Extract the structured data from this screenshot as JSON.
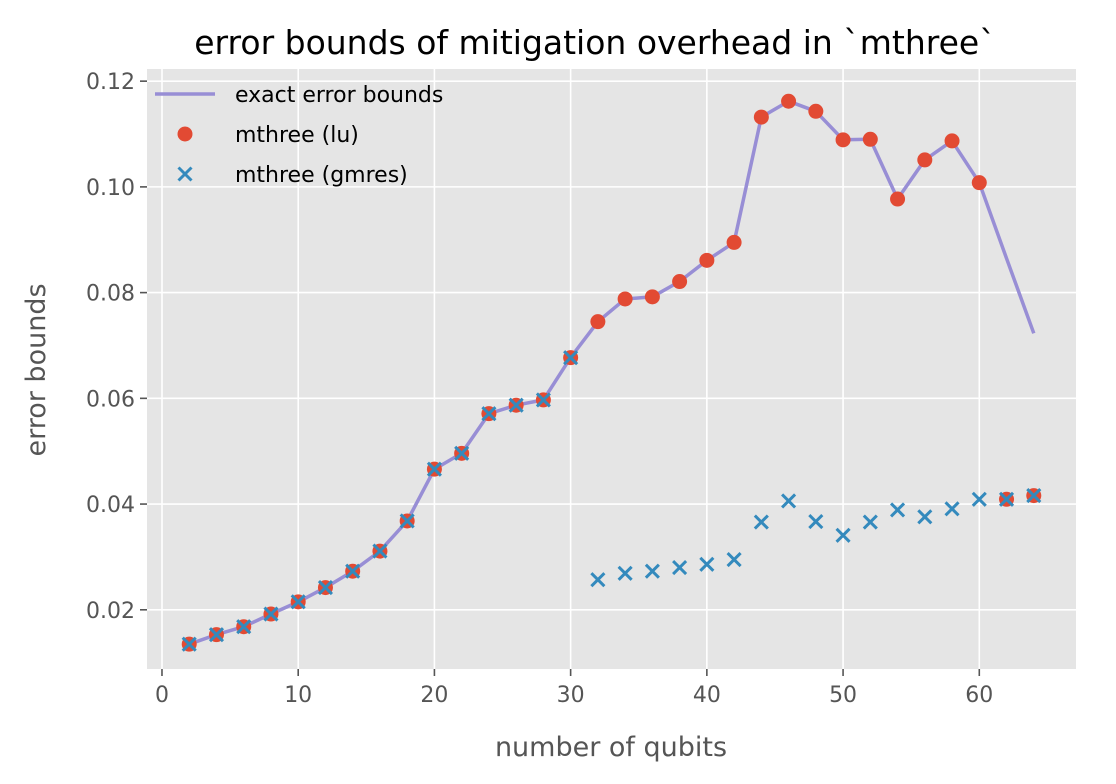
{
  "chart_data": {
    "type": "line",
    "title": "error bounds of mitigation overhead in `mthree`",
    "xlabel": "number of qubits",
    "ylabel": "error bounds",
    "xlim": [
      -1.1,
      67.1
    ],
    "ylim": [
      0.0088,
      0.1223
    ],
    "xticks": [
      0,
      10,
      20,
      30,
      40,
      50,
      60
    ],
    "yticks": [
      0.02,
      0.04,
      0.06,
      0.08,
      0.1,
      0.12
    ],
    "xtick_labels": [
      "0",
      "10",
      "20",
      "30",
      "40",
      "50",
      "60"
    ],
    "ytick_labels": [
      "0.02",
      "0.04",
      "0.06",
      "0.08",
      "0.10",
      "0.12"
    ],
    "grid": true,
    "legend_position": "top-left",
    "series": [
      {
        "name": "exact error bounds",
        "kind": "line",
        "color": "#988ED5",
        "x": [
          2,
          4,
          6,
          8,
          10,
          12,
          14,
          16,
          18,
          20,
          22,
          24,
          26,
          28,
          30,
          32,
          34,
          36,
          38,
          40,
          42,
          44,
          46,
          48,
          50,
          52,
          54,
          56,
          58,
          60,
          62,
          64
        ],
        "y": [
          0.0135,
          0.0153,
          0.0168,
          0.0192,
          0.0215,
          0.0242,
          0.0273,
          0.0311,
          0.0368,
          0.0466,
          0.0496,
          0.0571,
          0.0587,
          0.0597,
          0.0677,
          0.0745,
          0.0788,
          0.0792,
          0.0821,
          0.0861,
          0.0895,
          0.1132,
          0.1162,
          0.1143,
          0.1089,
          0.109,
          0.0977,
          0.1051,
          0.1087,
          0.1008,
          0.0865,
          0.0723
        ]
      },
      {
        "name": "mthree (lu)",
        "kind": "scatter",
        "marker": "circle",
        "color": "#E24A33",
        "x": [
          2,
          4,
          6,
          8,
          10,
          12,
          14,
          16,
          18,
          20,
          22,
          24,
          26,
          28,
          30,
          32,
          34,
          36,
          38,
          40,
          42,
          44,
          46,
          48,
          50,
          52,
          54,
          56,
          58,
          60,
          62,
          64
        ],
        "y": [
          0.0135,
          0.0153,
          0.0168,
          0.0192,
          0.0215,
          0.0242,
          0.0273,
          0.0311,
          0.0368,
          0.0466,
          0.0496,
          0.0571,
          0.0587,
          0.0597,
          0.0677,
          0.0745,
          0.0788,
          0.0792,
          0.0821,
          0.0861,
          0.0895,
          0.1132,
          0.1162,
          0.1143,
          0.1089,
          0.109,
          0.0977,
          0.1051,
          0.1087,
          0.1008,
          0.0409,
          0.0416
        ]
      },
      {
        "name": "mthree (gmres)",
        "kind": "scatter",
        "marker": "x",
        "color": "#348ABD",
        "x": [
          2,
          4,
          6,
          8,
          10,
          12,
          14,
          16,
          18,
          20,
          22,
          24,
          26,
          28,
          30,
          32,
          34,
          36,
          38,
          40,
          42,
          44,
          46,
          48,
          50,
          52,
          54,
          56,
          58,
          60,
          62,
          64
        ],
        "y": [
          0.0135,
          0.0153,
          0.0168,
          0.0192,
          0.0215,
          0.0242,
          0.0273,
          0.0311,
          0.0368,
          0.0466,
          0.0496,
          0.0571,
          0.0587,
          0.0597,
          0.0677,
          0.0257,
          0.0269,
          0.0273,
          0.028,
          0.0286,
          0.0295,
          0.0366,
          0.0406,
          0.0367,
          0.0341,
          0.0366,
          0.0389,
          0.0376,
          0.0391,
          0.0409,
          0.0409,
          0.0416
        ]
      }
    ]
  }
}
